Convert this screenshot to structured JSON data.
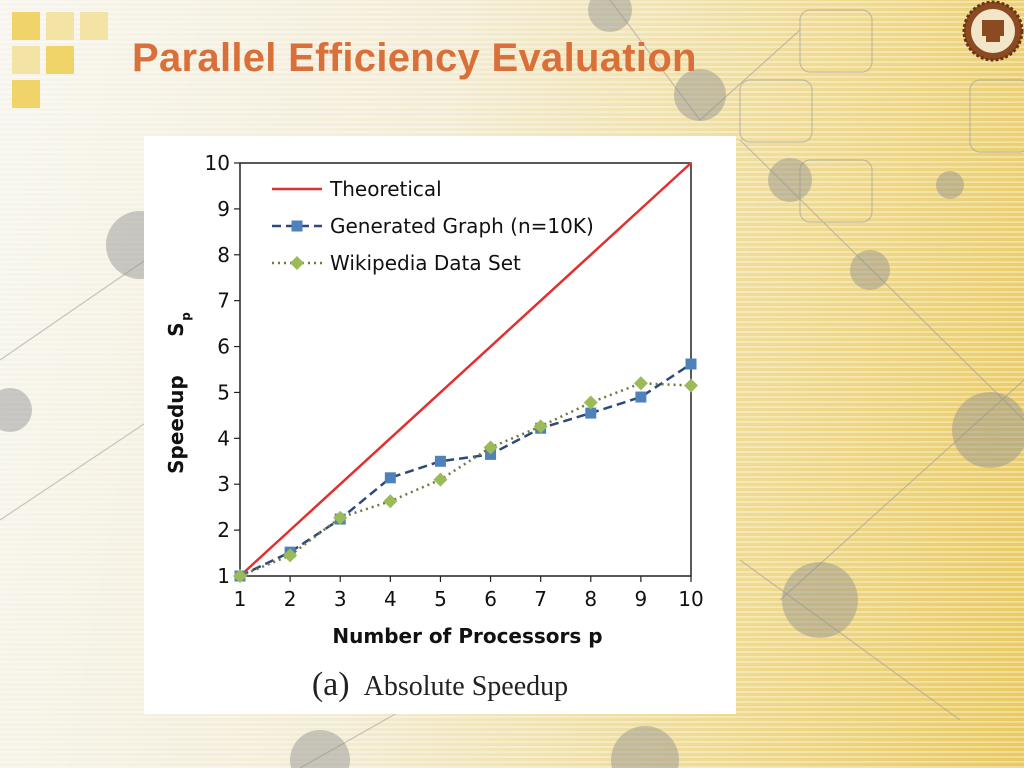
{
  "slide": {
    "title": "Parallel Efficiency Evaluation",
    "accent_color": "#d9703a",
    "logo_icon": "university-seal-icon"
  },
  "caption": {
    "tag": "(a)",
    "text": "Absolute Speedup"
  },
  "chart_data": {
    "type": "line",
    "xlabel": "Number  of  Processors   p",
    "ylabel": "Speedup",
    "ylabel_subscript": "S",
    "ylabel_subscript_p": "p",
    "x": [
      1,
      2,
      3,
      4,
      5,
      6,
      7,
      8,
      9,
      10
    ],
    "xlim": [
      1,
      10
    ],
    "ylim": [
      1,
      10
    ],
    "xticks": [
      "1",
      "2",
      "3",
      "4",
      "5",
      "6",
      "7",
      "8",
      "9",
      "10"
    ],
    "yticks": [
      "1",
      "2",
      "3",
      "4",
      "5",
      "6",
      "7",
      "8",
      "9",
      "10"
    ],
    "grid": false,
    "legend_position": "top-left",
    "series": [
      {
        "name": "Theoretical",
        "color": "#e03030",
        "style": "solid",
        "marker": "none",
        "values": [
          1,
          2,
          3,
          4,
          5,
          6,
          7,
          8,
          9,
          10
        ]
      },
      {
        "name": "Generated Graph (n=10K)",
        "color": "#2b4a7a",
        "marker_color": "#4f81bd",
        "style": "dashed",
        "marker": "square",
        "values": [
          1.0,
          1.52,
          2.24,
          3.14,
          3.5,
          3.65,
          4.22,
          4.55,
          4.9,
          5.62
        ]
      },
      {
        "name": "Wikipedia Data Set",
        "color": "#6b7a3a",
        "marker_color": "#9bbb59",
        "style": "dotted",
        "marker": "diamond",
        "values": [
          1.0,
          1.45,
          2.27,
          2.63,
          3.1,
          3.8,
          4.26,
          4.78,
          5.2,
          5.15
        ]
      }
    ]
  }
}
